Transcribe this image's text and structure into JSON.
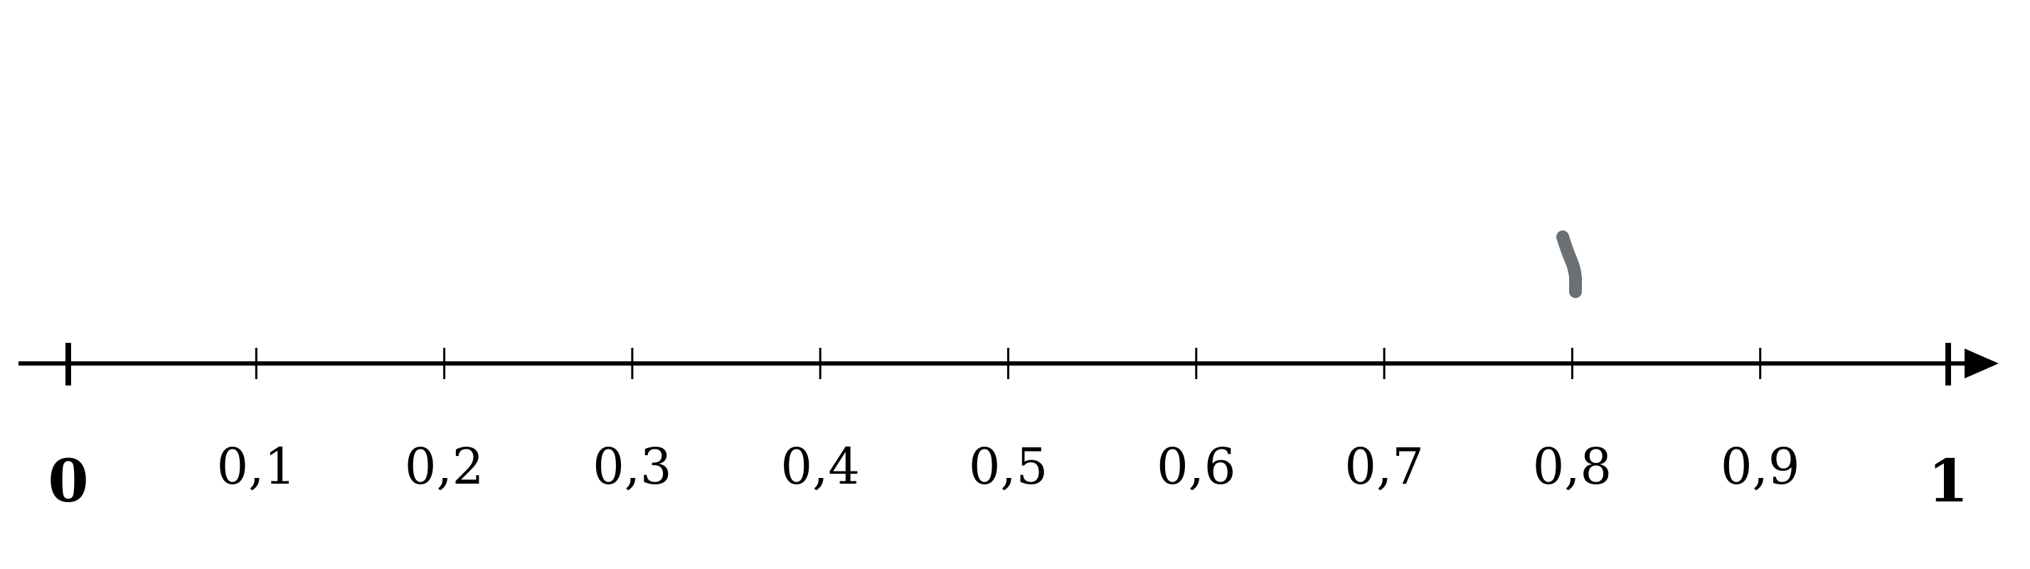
{
  "number_line": {
    "start_value": 0,
    "end_value": 1,
    "start_label": "0",
    "end_label": "1",
    "ticks": [
      {
        "value": 0.1,
        "label": "0,1"
      },
      {
        "value": 0.2,
        "label": "0,2"
      },
      {
        "value": 0.3,
        "label": "0,3"
      },
      {
        "value": 0.4,
        "label": "0,4"
      },
      {
        "value": 0.5,
        "label": "0,5"
      },
      {
        "value": 0.6,
        "label": "0,6"
      },
      {
        "value": 0.7,
        "label": "0,7"
      },
      {
        "value": 0.8,
        "label": "0,8"
      },
      {
        "value": 0.9,
        "label": "0,9"
      }
    ],
    "colors": {
      "line": "#000000",
      "pen_mark": "#6b7075"
    }
  },
  "pen_mark": {
    "near_value": 0.8,
    "color": "#6b7075"
  }
}
